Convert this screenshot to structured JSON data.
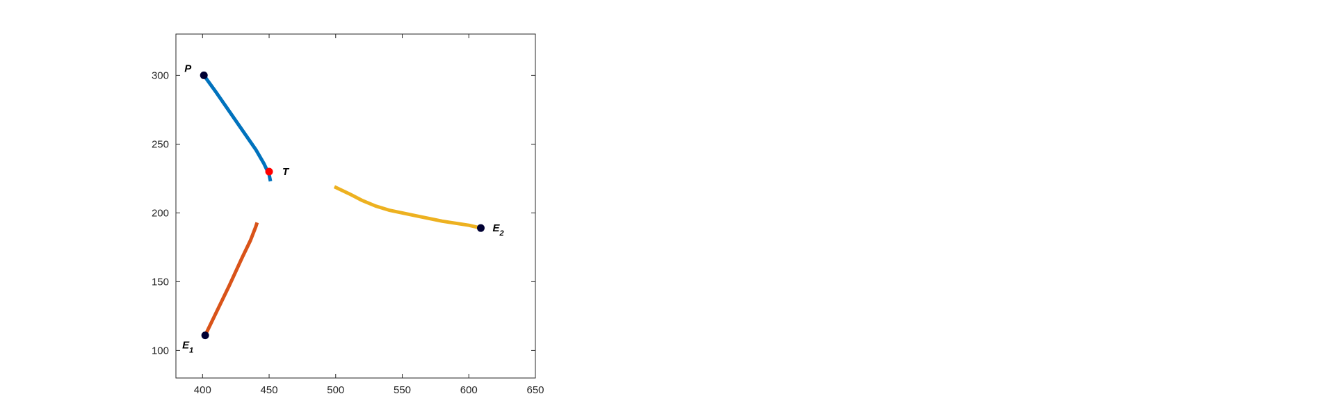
{
  "chart_data": {
    "type": "line",
    "title": "",
    "xlabel": "",
    "ylabel": "",
    "xlim": [
      380,
      650
    ],
    "ylim": [
      80,
      330
    ],
    "x_ticks": [
      400,
      450,
      500,
      550,
      600,
      650
    ],
    "y_ticks": [
      100,
      150,
      200,
      250,
      300
    ],
    "grid": false,
    "box": true,
    "series": [
      {
        "color": "#0072BD",
        "points": [
          [
            401,
            300
          ],
          [
            410,
            288
          ],
          [
            420,
            274
          ],
          [
            430,
            260
          ],
          [
            440,
            246
          ],
          [
            446,
            236
          ],
          [
            450,
            228
          ],
          [
            451,
            223
          ]
        ]
      },
      {
        "color": "#D95319",
        "points": [
          [
            402,
            111
          ],
          [
            410,
            127
          ],
          [
            420,
            147
          ],
          [
            430,
            168
          ],
          [
            436,
            180
          ],
          [
            440,
            190
          ],
          [
            441,
            193
          ]
        ]
      },
      {
        "color": "#EDB120",
        "points": [
          [
            499,
            219
          ],
          [
            510,
            214
          ],
          [
            520,
            209
          ],
          [
            530,
            205
          ],
          [
            540,
            202
          ],
          [
            560,
            198
          ],
          [
            580,
            194
          ],
          [
            600,
            191
          ],
          [
            609,
            189
          ]
        ]
      }
    ],
    "markers": [
      {
        "id": "P",
        "x": 401,
        "y": 300,
        "label": "P",
        "sub": "",
        "color": "#000033",
        "label_pos": "upper-left"
      },
      {
        "id": "E1",
        "x": 402,
        "y": 111,
        "label": "E",
        "sub": "1",
        "color": "#000033",
        "label_pos": "lower-left"
      },
      {
        "id": "E2",
        "x": 609,
        "y": 189,
        "label": "E",
        "sub": "2",
        "color": "#000033",
        "label_pos": "right"
      },
      {
        "id": "T",
        "x": 450,
        "y": 230,
        "label": "T",
        "sub": "",
        "color": "#FF0000",
        "label_pos": "right"
      }
    ]
  }
}
